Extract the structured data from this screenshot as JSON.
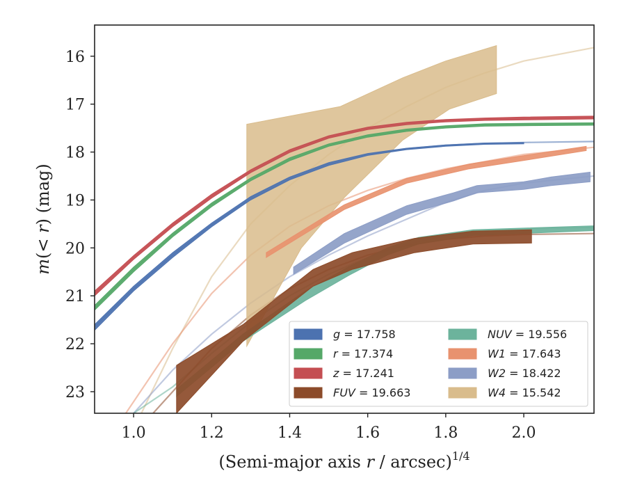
{
  "chart_data": {
    "type": "line",
    "xlabel": {
      "prefix": "(Semi-major axis ",
      "var": "r",
      "suffix": " / arcsec)",
      "sup": "1/4"
    },
    "ylabel": {
      "var": "m",
      "paren_open": "(< ",
      "paren_var": "r",
      "paren_close": ")",
      "unit": " (mag)"
    },
    "xlim": [
      0.9,
      2.18
    ],
    "ylim": [
      23.45,
      15.35
    ],
    "y_inverted": true,
    "x_ticks": [
      "1.0",
      "1.2",
      "1.4",
      "1.6",
      "1.8",
      "2.0"
    ],
    "y_ticks": [
      "16",
      "17",
      "18",
      "19",
      "20",
      "21",
      "22",
      "23"
    ],
    "grid": false,
    "legend_position": "lower-right",
    "legend_columns": 2,
    "series": [
      {
        "band": "g",
        "value": "17.758",
        "color": "#4c72b0",
        "model": [
          [
            0.9,
            21.65
          ],
          [
            1.0,
            20.85
          ],
          [
            1.1,
            20.15
          ],
          [
            1.2,
            19.52
          ],
          [
            1.3,
            18.97
          ],
          [
            1.4,
            18.55
          ],
          [
            1.5,
            18.25
          ],
          [
            1.6,
            18.05
          ],
          [
            1.7,
            17.93
          ],
          [
            1.8,
            17.86
          ],
          [
            1.9,
            17.82
          ],
          [
            2.0,
            17.8
          ],
          [
            2.18,
            17.78
          ]
        ],
        "measured_lower": [
          [
            0.9,
            21.6
          ],
          [
            1.0,
            20.8
          ],
          [
            1.1,
            20.1
          ],
          [
            1.2,
            19.48
          ],
          [
            1.3,
            18.93
          ],
          [
            1.4,
            18.52
          ],
          [
            1.5,
            18.22
          ],
          [
            1.6,
            18.03
          ],
          [
            1.7,
            17.92
          ],
          [
            1.8,
            17.85
          ],
          [
            1.9,
            17.81
          ],
          [
            2.0,
            17.8
          ]
        ],
        "measured_upper": [
          [
            0.9,
            21.72
          ],
          [
            1.0,
            20.9
          ],
          [
            1.1,
            20.2
          ],
          [
            1.2,
            19.56
          ],
          [
            1.3,
            19.0
          ],
          [
            1.4,
            18.58
          ],
          [
            1.5,
            18.28
          ],
          [
            1.6,
            18.07
          ],
          [
            1.7,
            17.95
          ],
          [
            1.8,
            17.88
          ],
          [
            1.9,
            17.84
          ],
          [
            2.0,
            17.83
          ]
        ]
      },
      {
        "band": "r",
        "value": "17.374",
        "color": "#55a868",
        "model": [
          [
            0.9,
            21.25
          ],
          [
            1.0,
            20.45
          ],
          [
            1.1,
            19.73
          ],
          [
            1.2,
            19.1
          ],
          [
            1.3,
            18.57
          ],
          [
            1.4,
            18.15
          ],
          [
            1.5,
            17.85
          ],
          [
            1.6,
            17.66
          ],
          [
            1.7,
            17.54
          ],
          [
            1.8,
            17.47
          ],
          [
            1.9,
            17.43
          ],
          [
            2.0,
            17.42
          ],
          [
            2.18,
            17.41
          ]
        ],
        "measured_lower": [
          [
            0.9,
            21.2
          ],
          [
            1.0,
            20.4
          ],
          [
            1.1,
            19.69
          ],
          [
            1.2,
            19.06
          ],
          [
            1.3,
            18.54
          ],
          [
            1.4,
            18.12
          ],
          [
            1.5,
            17.83
          ],
          [
            1.6,
            17.64
          ],
          [
            1.7,
            17.52
          ],
          [
            1.8,
            17.45
          ],
          [
            1.9,
            17.41
          ],
          [
            2.0,
            17.4
          ],
          [
            2.18,
            17.39
          ]
        ],
        "measured_upper": [
          [
            0.9,
            21.3
          ],
          [
            1.0,
            20.5
          ],
          [
            1.1,
            19.77
          ],
          [
            1.2,
            19.14
          ],
          [
            1.3,
            18.6
          ],
          [
            1.4,
            18.18
          ],
          [
            1.5,
            17.88
          ],
          [
            1.6,
            17.69
          ],
          [
            1.7,
            17.57
          ],
          [
            1.8,
            17.5
          ],
          [
            1.9,
            17.46
          ],
          [
            2.0,
            17.45
          ],
          [
            2.18,
            17.44
          ]
        ]
      },
      {
        "band": "z",
        "value": "17.241",
        "color": "#c44e52",
        "model": [
          [
            0.9,
            20.95
          ],
          [
            1.0,
            20.2
          ],
          [
            1.1,
            19.52
          ],
          [
            1.2,
            18.92
          ],
          [
            1.3,
            18.4
          ],
          [
            1.4,
            17.98
          ],
          [
            1.5,
            17.68
          ],
          [
            1.6,
            17.5
          ],
          [
            1.7,
            17.4
          ],
          [
            1.8,
            17.34
          ],
          [
            1.9,
            17.31
          ],
          [
            2.0,
            17.3
          ],
          [
            2.18,
            17.28
          ]
        ],
        "measured_lower": [
          [
            0.9,
            20.9
          ],
          [
            1.0,
            20.16
          ],
          [
            1.1,
            19.48
          ],
          [
            1.2,
            18.88
          ],
          [
            1.3,
            18.37
          ],
          [
            1.4,
            17.95
          ],
          [
            1.5,
            17.66
          ],
          [
            1.6,
            17.48
          ],
          [
            1.7,
            17.38
          ],
          [
            1.8,
            17.32
          ],
          [
            1.9,
            17.29
          ],
          [
            2.0,
            17.27
          ],
          [
            2.18,
            17.25
          ]
        ],
        "measured_upper": [
          [
            0.9,
            21.0
          ],
          [
            1.0,
            20.24
          ],
          [
            1.1,
            19.56
          ],
          [
            1.2,
            18.96
          ],
          [
            1.3,
            18.43
          ],
          [
            1.4,
            18.01
          ],
          [
            1.5,
            17.71
          ],
          [
            1.6,
            17.53
          ],
          [
            1.7,
            17.43
          ],
          [
            1.8,
            17.37
          ],
          [
            1.9,
            17.34
          ],
          [
            2.0,
            17.33
          ],
          [
            2.18,
            17.31
          ]
        ]
      },
      {
        "band": "FUV",
        "value": "19.663",
        "color": "#8c4b2a",
        "model": [
          [
            1.05,
            23.45
          ],
          [
            1.1,
            23.0
          ],
          [
            1.2,
            22.1
          ],
          [
            1.3,
            21.4
          ],
          [
            1.4,
            20.85
          ],
          [
            1.5,
            20.45
          ],
          [
            1.6,
            20.15
          ],
          [
            1.7,
            19.95
          ],
          [
            1.8,
            19.82
          ],
          [
            1.9,
            19.75
          ],
          [
            2.0,
            19.72
          ],
          [
            2.18,
            19.7
          ]
        ],
        "measured_lower": [
          [
            1.11,
            22.45
          ],
          [
            1.28,
            21.6
          ],
          [
            1.46,
            20.45
          ],
          [
            1.56,
            20.1
          ],
          [
            1.72,
            19.8
          ],
          [
            1.87,
            19.65
          ],
          [
            2.02,
            19.62
          ]
        ],
        "measured_upper": [
          [
            1.11,
            23.45
          ],
          [
            1.28,
            21.95
          ],
          [
            1.46,
            20.8
          ],
          [
            1.56,
            20.45
          ],
          [
            1.72,
            20.1
          ],
          [
            1.87,
            19.92
          ],
          [
            2.02,
            19.9
          ]
        ]
      },
      {
        "band": "NUV",
        "value": "19.556",
        "color": "#6cb39c",
        "model": [
          [
            1.0,
            23.45
          ],
          [
            1.1,
            22.9
          ],
          [
            1.2,
            22.2
          ],
          [
            1.3,
            21.55
          ],
          [
            1.4,
            21.0
          ],
          [
            1.5,
            20.55
          ],
          [
            1.6,
            20.2
          ],
          [
            1.7,
            19.92
          ],
          [
            1.8,
            19.75
          ],
          [
            1.9,
            19.65
          ],
          [
            2.0,
            19.6
          ],
          [
            2.18,
            19.57
          ]
        ],
        "measured_lower": [
          [
            1.11,
            22.95
          ],
          [
            1.28,
            21.8
          ],
          [
            1.44,
            20.9
          ],
          [
            1.55,
            20.4
          ],
          [
            1.65,
            20.0
          ],
          [
            1.73,
            19.78
          ],
          [
            1.87,
            19.62
          ],
          [
            2.18,
            19.54
          ]
        ],
        "measured_upper": [
          [
            1.11,
            23.1
          ],
          [
            1.28,
            21.95
          ],
          [
            1.44,
            21.1
          ],
          [
            1.55,
            20.58
          ],
          [
            1.65,
            20.15
          ],
          [
            1.73,
            19.92
          ],
          [
            1.87,
            19.74
          ],
          [
            2.18,
            19.64
          ]
        ]
      },
      {
        "band": "W1",
        "value": "17.643",
        "color": "#e8926f",
        "model": [
          [
            0.98,
            23.45
          ],
          [
            1.1,
            22.0
          ],
          [
            1.2,
            20.95
          ],
          [
            1.3,
            20.15
          ],
          [
            1.4,
            19.55
          ],
          [
            1.5,
            19.12
          ],
          [
            1.6,
            18.8
          ],
          [
            1.7,
            18.55
          ],
          [
            1.8,
            18.35
          ],
          [
            1.9,
            18.2
          ],
          [
            2.0,
            18.05
          ],
          [
            2.18,
            17.9
          ]
        ],
        "measured_lower": [
          [
            1.34,
            20.1
          ],
          [
            1.54,
            19.1
          ],
          [
            1.7,
            18.55
          ],
          [
            1.86,
            18.25
          ],
          [
            2.02,
            18.05
          ],
          [
            2.16,
            17.88
          ]
        ],
        "measured_upper": [
          [
            1.34,
            20.2
          ],
          [
            1.54,
            19.2
          ],
          [
            1.7,
            18.65
          ],
          [
            1.86,
            18.35
          ],
          [
            2.02,
            18.15
          ],
          [
            2.16,
            17.97
          ]
        ]
      },
      {
        "band": "W2",
        "value": "18.422",
        "color": "#8c9dc6",
        "model": [
          [
            1.0,
            23.45
          ],
          [
            1.1,
            22.55
          ],
          [
            1.2,
            21.8
          ],
          [
            1.3,
            21.15
          ],
          [
            1.4,
            20.6
          ],
          [
            1.5,
            20.15
          ],
          [
            1.6,
            19.75
          ],
          [
            1.7,
            19.4
          ],
          [
            1.8,
            19.05
          ],
          [
            1.9,
            18.8
          ],
          [
            2.0,
            18.65
          ],
          [
            2.18,
            18.5
          ]
        ],
        "measured_lower": [
          [
            1.41,
            20.4
          ],
          [
            1.54,
            19.7
          ],
          [
            1.7,
            19.12
          ],
          [
            1.82,
            18.85
          ],
          [
            1.88,
            18.7
          ],
          [
            2.0,
            18.62
          ],
          [
            2.07,
            18.52
          ],
          [
            2.17,
            18.42
          ]
        ],
        "measured_upper": [
          [
            1.41,
            20.55
          ],
          [
            1.54,
            19.9
          ],
          [
            1.7,
            19.3
          ],
          [
            1.82,
            19.02
          ],
          [
            1.88,
            18.85
          ],
          [
            2.0,
            18.78
          ],
          [
            2.07,
            18.7
          ],
          [
            2.17,
            18.62
          ]
        ]
      },
      {
        "band": "W4",
        "value": "15.542",
        "color": "#d9bc8c",
        "model": [
          [
            1.02,
            23.45
          ],
          [
            1.1,
            22.1
          ],
          [
            1.2,
            20.6
          ],
          [
            1.3,
            19.5
          ],
          [
            1.4,
            18.7
          ],
          [
            1.5,
            18.05
          ],
          [
            1.6,
            17.5
          ],
          [
            1.7,
            17.05
          ],
          [
            1.8,
            16.65
          ],
          [
            1.9,
            16.35
          ],
          [
            2.0,
            16.1
          ],
          [
            2.18,
            15.82
          ]
        ],
        "measured_lower": [
          [
            1.29,
            22.05
          ],
          [
            1.43,
            20.0
          ],
          [
            1.54,
            18.95
          ],
          [
            1.69,
            17.75
          ],
          [
            1.81,
            17.1
          ],
          [
            1.93,
            16.78
          ]
        ],
        "measured_upper": [
          [
            1.29,
            17.42
          ],
          [
            1.53,
            17.05
          ],
          [
            1.69,
            16.45
          ],
          [
            1.8,
            16.1
          ],
          [
            1.93,
            15.78
          ]
        ]
      }
    ]
  }
}
